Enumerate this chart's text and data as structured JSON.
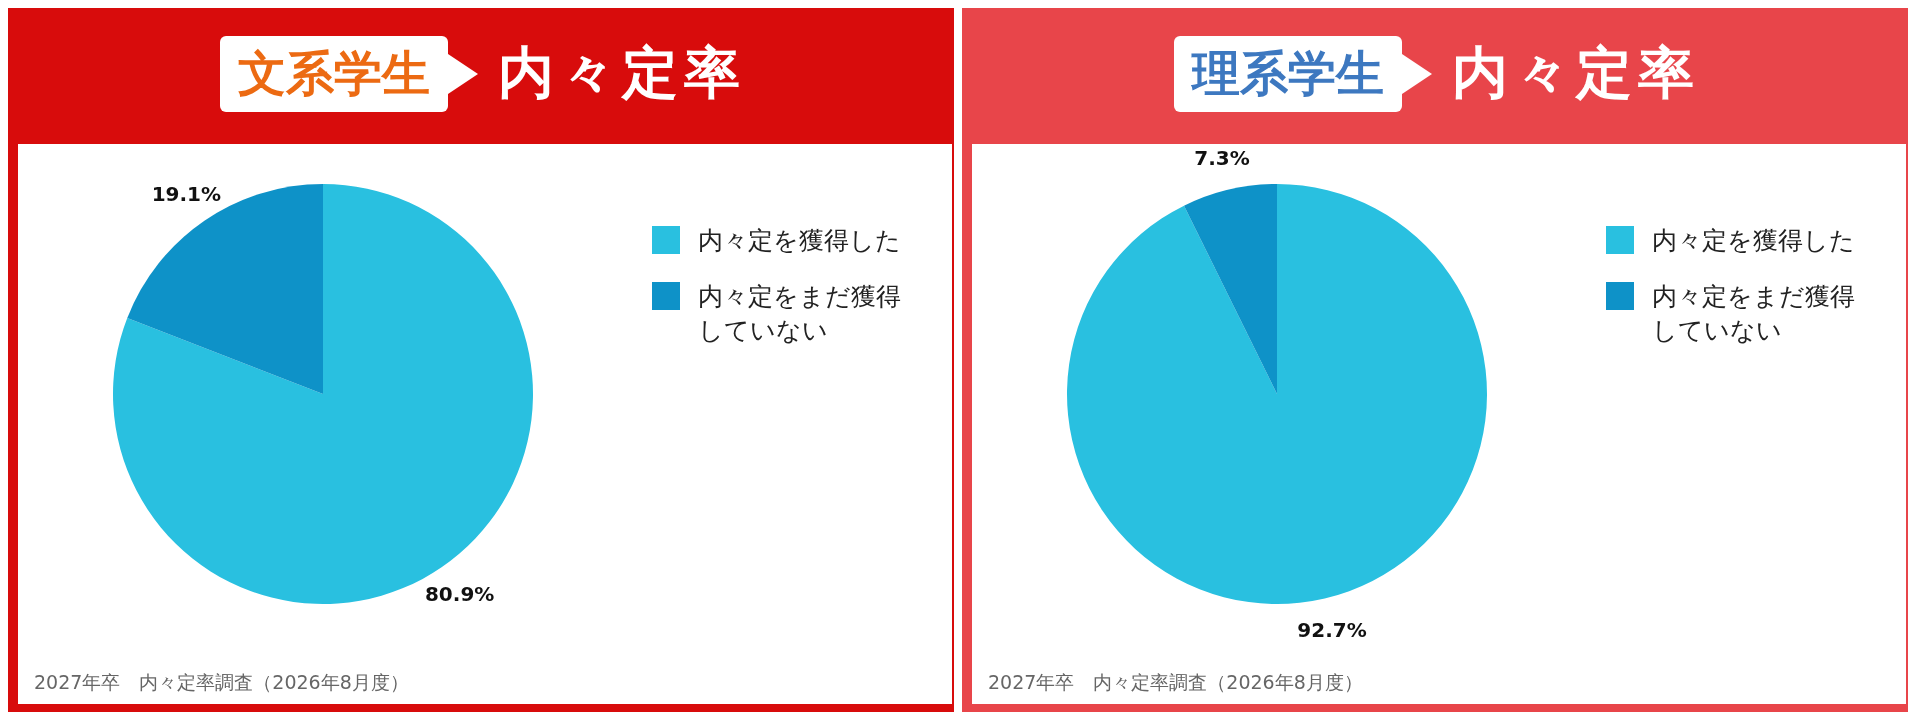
{
  "chart_data": [
    {
      "type": "pie",
      "title": "文系学生",
      "subtitle": "内々定率",
      "categories": [
        "内々定を獲得した",
        "内々定をまだ獲得していない"
      ],
      "values": [
        80.9,
        19.1
      ],
      "colors": [
        "#29c0e0",
        "#0e92c8"
      ],
      "value_labels": [
        "80.9%",
        "19.1%"
      ],
      "legend": "top right",
      "annotations": [
        "2027年卒　内々定率調査（2026年8月度）"
      ]
    },
    {
      "type": "pie",
      "title": "理系学生",
      "subtitle": "内々定率",
      "categories": [
        "内々定を獲得した",
        "内々定をまだ獲得していない"
      ],
      "values": [
        92.7,
        7.3
      ],
      "colors": [
        "#29c0e0",
        "#0e92c8"
      ],
      "value_labels": [
        "92.7%",
        "7.3%"
      ],
      "legend": "top right",
      "annotations": [
        "2027年卒　内々定率調査（2026年8月度）"
      ]
    }
  ]
}
